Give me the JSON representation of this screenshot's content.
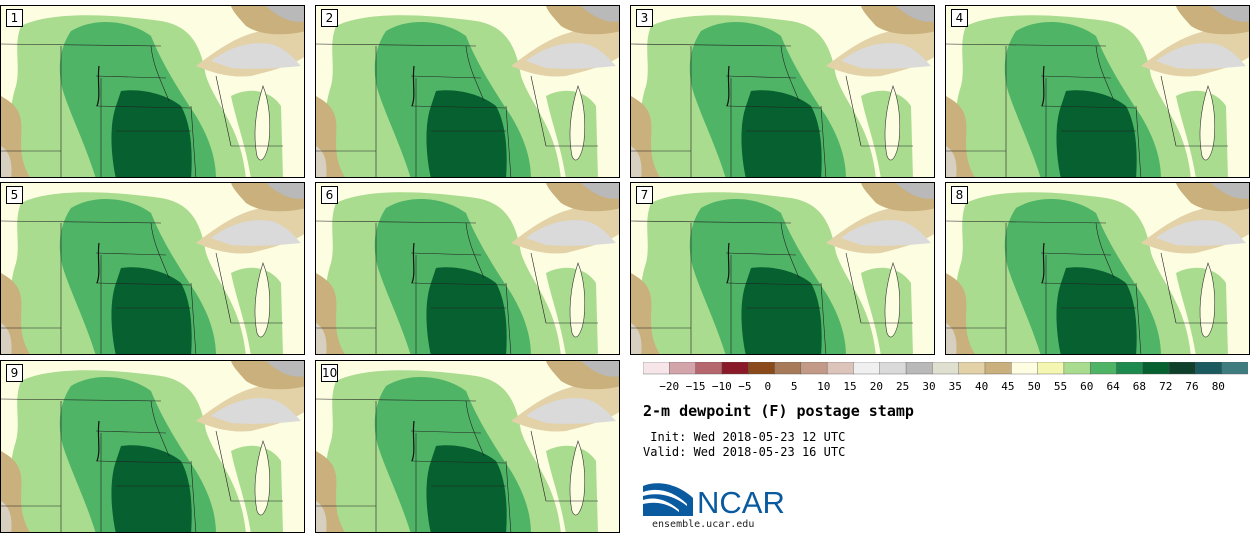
{
  "panels": [
    "1",
    "2",
    "3",
    "4",
    "5",
    "6",
    "7",
    "8",
    "9",
    "10"
  ],
  "legend": {
    "colors": [
      "#f6e6ea",
      "#d4a4ab",
      "#b5676d",
      "#8a1a28",
      "#8b4a1b",
      "#a77a5a",
      "#c39a88",
      "#dcc4bb",
      "#f0f0f0",
      "#dadada",
      "#b9b9b9",
      "#e0e0d0",
      "#e3d2a8",
      "#c9b07c",
      "#fdfde2",
      "#f3f7b1",
      "#a9dc8f",
      "#4fb466",
      "#1f8a4d",
      "#07602f",
      "#0e402b",
      "#1b5a5e",
      "#3f7c80"
    ],
    "labels": [
      "−20",
      "−15",
      "−10",
      "−5",
      "0",
      "5",
      "10",
      "15",
      "20",
      "25",
      "30",
      "35",
      "40",
      "45",
      "50",
      "55",
      "60",
      "64",
      "68",
      "72",
      "76",
      "80"
    ]
  },
  "title": "2-m dewpoint (F) postage stamp",
  "init_line": " Init: Wed 2018-05-23 12 UTC",
  "valid_line": "Valid: Wed 2018-05-23 16 UTC",
  "logo_text": "NCAR",
  "site": "ensemble.ucar.edu"
}
